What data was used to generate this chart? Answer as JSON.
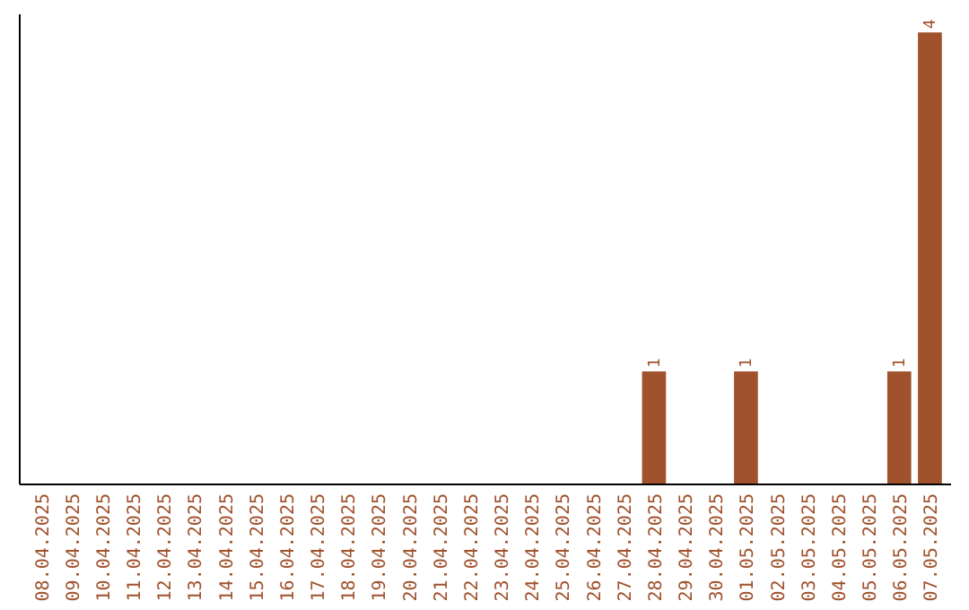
{
  "chart_data": {
    "type": "bar",
    "categories": [
      "08.04.2025",
      "09.04.2025",
      "10.04.2025",
      "11.04.2025",
      "12.04.2025",
      "13.04.2025",
      "14.04.2025",
      "15.04.2025",
      "16.04.2025",
      "17.04.2025",
      "18.04.2025",
      "19.04.2025",
      "20.04.2025",
      "21.04.2025",
      "22.04.2025",
      "23.04.2025",
      "24.04.2025",
      "25.04.2025",
      "26.04.2025",
      "27.04.2025",
      "28.04.2025",
      "29.04.2025",
      "30.04.2025",
      "01.05.2025",
      "02.05.2025",
      "03.05.2025",
      "04.05.2025",
      "05.05.2025",
      "06.05.2025",
      "07.05.2025"
    ],
    "values": [
      null,
      null,
      null,
      null,
      null,
      null,
      null,
      null,
      null,
      null,
      null,
      null,
      null,
      null,
      null,
      null,
      null,
      null,
      null,
      null,
      1,
      null,
      null,
      1,
      null,
      null,
      null,
      null,
      1,
      4
    ],
    "color": "#a0522d",
    "data_labels": true
  }
}
